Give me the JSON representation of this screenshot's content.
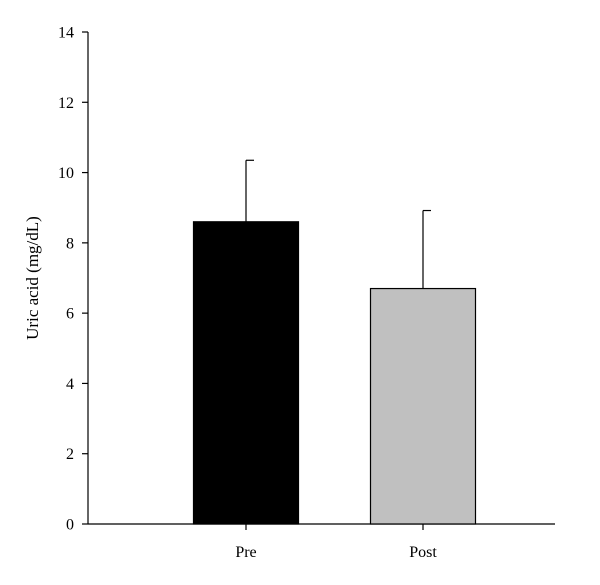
{
  "chart_data": {
    "type": "bar",
    "title": "",
    "xlabel": "",
    "ylabel": "Uric acid (mg/dL)",
    "categories": [
      "Pre",
      "Post"
    ],
    "values": [
      8.6,
      6.7
    ],
    "errors": [
      1.75,
      2.22
    ],
    "colors": [
      "#000000",
      "#c0c0c0"
    ],
    "ylim": [
      0,
      14
    ],
    "yticks": [
      0,
      2,
      4,
      6,
      8,
      10,
      12,
      14
    ],
    "grid": false,
    "legend": "none"
  }
}
